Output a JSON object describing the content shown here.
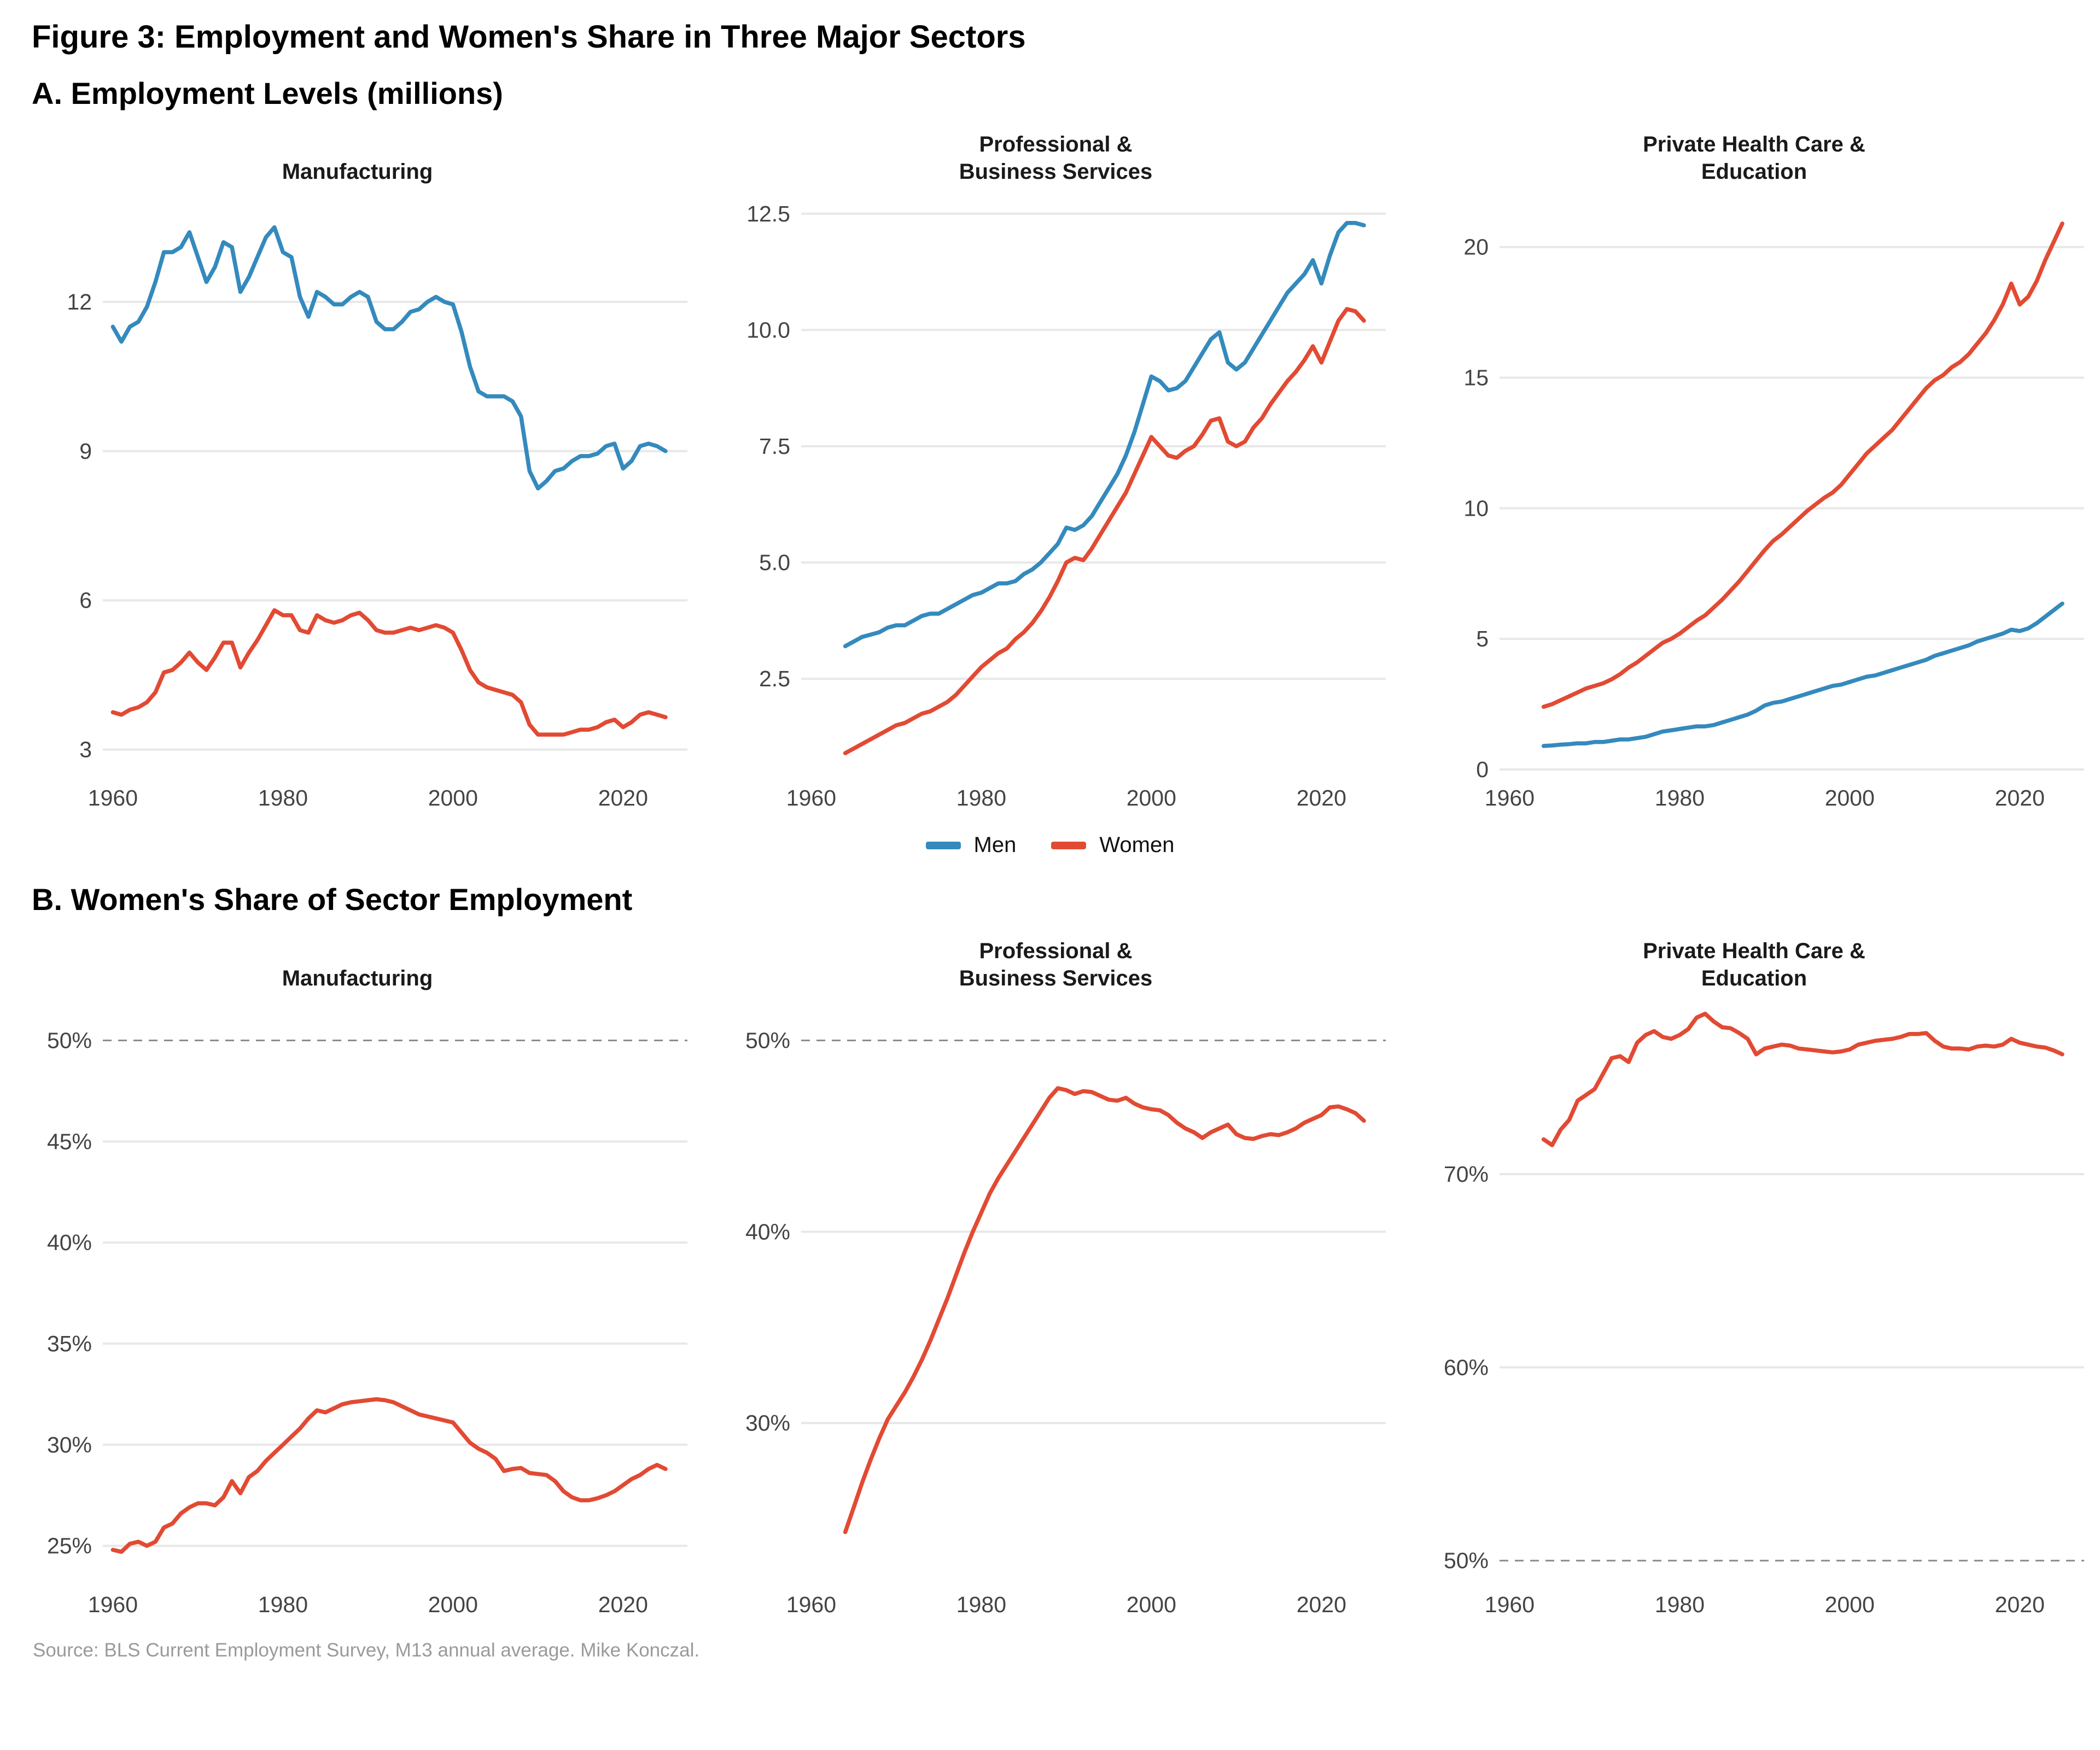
{
  "page": {
    "title": "Figure 3: Employment and Women's Share in Three Major Sectors",
    "panel_a_heading": "A. Employment Levels (millions)",
    "panel_b_heading": "B. Women's Share of Sector Employment",
    "source": "Source: BLS Current Employment Survey, M13 annual average. Mike Konczal."
  },
  "legend": {
    "position": "bottom-center",
    "items": [
      {
        "label": "Men",
        "color": "#348ABD"
      },
      {
        "label": "Women",
        "color": "#E24A33"
      }
    ]
  },
  "colors": {
    "men": "#348ABD",
    "women": "#E24A33",
    "gridline": "#E8E8E8",
    "dashed_line": "#8C8C8C",
    "tick_label": "#444444",
    "title_text": "#000000",
    "source_text": "#9A9A9A"
  },
  "chart_data": [
    {
      "id": "a-manufacturing",
      "panel": "A",
      "type": "line",
      "title_lines": [
        "Manufacturing"
      ],
      "xlabel": "",
      "ylabel": "",
      "xlim": [
        1959.2,
        2026.8
      ],
      "ylim": [
        2.6,
        14.1
      ],
      "xticks": [
        1960,
        1980,
        2000,
        2020
      ],
      "yticks": [
        {
          "value": 12,
          "label": "12"
        },
        {
          "value": 9,
          "label": "9"
        },
        {
          "value": 6,
          "label": "6"
        },
        {
          "value": 3,
          "label": "3"
        }
      ],
      "series": [
        {
          "name": "Men",
          "color_key": "men",
          "start_year": 1960,
          "values": [
            11.5,
            11.2,
            11.5,
            11.6,
            11.9,
            12.4,
            13.0,
            13.0,
            13.1,
            13.4,
            12.9,
            12.4,
            12.7,
            13.2,
            13.1,
            12.2,
            12.5,
            12.9,
            13.3,
            13.5,
            13.0,
            12.9,
            12.1,
            11.7,
            12.2,
            12.1,
            11.95,
            11.95,
            12.1,
            12.2,
            12.1,
            11.6,
            11.45,
            11.45,
            11.6,
            11.8,
            11.85,
            12.0,
            12.1,
            12.0,
            11.95,
            11.4,
            10.7,
            10.2,
            10.1,
            10.1,
            10.1,
            10.0,
            9.7,
            8.6,
            8.25,
            8.4,
            8.6,
            8.65,
            8.8,
            8.9,
            8.9,
            8.95,
            9.1,
            9.15,
            8.65,
            8.8,
            9.1,
            9.15,
            9.1,
            9.0
          ]
        },
        {
          "name": "Women",
          "color_key": "women",
          "start_year": 1960,
          "values": [
            3.75,
            3.7,
            3.8,
            3.85,
            3.95,
            4.15,
            4.55,
            4.6,
            4.75,
            4.95,
            4.75,
            4.6,
            4.85,
            5.15,
            5.15,
            4.65,
            4.95,
            5.2,
            5.5,
            5.8,
            5.7,
            5.7,
            5.4,
            5.35,
            5.7,
            5.6,
            5.55,
            5.6,
            5.7,
            5.75,
            5.6,
            5.4,
            5.35,
            5.35,
            5.4,
            5.45,
            5.4,
            5.45,
            5.5,
            5.45,
            5.35,
            5.0,
            4.6,
            4.35,
            4.25,
            4.2,
            4.15,
            4.1,
            3.95,
            3.5,
            3.3,
            3.3,
            3.3,
            3.3,
            3.35,
            3.4,
            3.4,
            3.45,
            3.55,
            3.6,
            3.45,
            3.55,
            3.7,
            3.75,
            3.7,
            3.65
          ]
        }
      ]
    },
    {
      "id": "a-professional-business",
      "panel": "A",
      "type": "line",
      "title_lines": [
        "Professional &",
        "Business Services"
      ],
      "xlabel": "",
      "ylabel": "",
      "xlim": [
        1959.2,
        2026.8
      ],
      "ylim": [
        0.55,
        12.85
      ],
      "xticks": [
        1960,
        1980,
        2000,
        2020
      ],
      "yticks": [
        {
          "value": 12.5,
          "label": "12.5"
        },
        {
          "value": 10.0,
          "label": "10.0"
        },
        {
          "value": 7.5,
          "label": "7.5"
        },
        {
          "value": 5.0,
          "label": "5.0"
        },
        {
          "value": 2.5,
          "label": "2.5"
        }
      ],
      "series": [
        {
          "name": "Men",
          "color_key": "men",
          "start_year": 1964,
          "values": [
            3.2,
            3.3,
            3.4,
            3.45,
            3.5,
            3.6,
            3.65,
            3.65,
            3.75,
            3.85,
            3.9,
            3.9,
            4.0,
            4.1,
            4.2,
            4.3,
            4.35,
            4.45,
            4.55,
            4.55,
            4.6,
            4.75,
            4.85,
            5.0,
            5.2,
            5.4,
            5.75,
            5.7,
            5.8,
            6.0,
            6.3,
            6.6,
            6.9,
            7.3,
            7.8,
            8.4,
            9.0,
            8.9,
            8.7,
            8.75,
            8.9,
            9.2,
            9.5,
            9.8,
            9.95,
            9.3,
            9.15,
            9.3,
            9.6,
            9.9,
            10.2,
            10.5,
            10.8,
            11.0,
            11.2,
            11.5,
            11.0,
            11.6,
            12.1,
            12.3,
            12.3,
            12.25
          ]
        },
        {
          "name": "Women",
          "color_key": "women",
          "start_year": 1964,
          "values": [
            0.9,
            1.0,
            1.1,
            1.2,
            1.3,
            1.4,
            1.5,
            1.55,
            1.65,
            1.75,
            1.8,
            1.9,
            2.0,
            2.15,
            2.35,
            2.55,
            2.75,
            2.9,
            3.05,
            3.15,
            3.35,
            3.5,
            3.7,
            3.95,
            4.25,
            4.6,
            5.0,
            5.1,
            5.05,
            5.3,
            5.6,
            5.9,
            6.2,
            6.5,
            6.9,
            7.3,
            7.7,
            7.5,
            7.3,
            7.25,
            7.4,
            7.5,
            7.75,
            8.05,
            8.1,
            7.6,
            7.5,
            7.6,
            7.9,
            8.1,
            8.4,
            8.65,
            8.9,
            9.1,
            9.35,
            9.65,
            9.3,
            9.75,
            10.2,
            10.45,
            10.4,
            10.2
          ]
        }
      ]
    },
    {
      "id": "a-health-education",
      "panel": "A",
      "type": "line",
      "title_lines": [
        "Private Health Care &",
        "Education"
      ],
      "xlabel": "",
      "ylabel": "",
      "xlim": [
        1959.2,
        2026.8
      ],
      "ylim": [
        0,
        21.9
      ],
      "xticks": [
        1960,
        1980,
        2000,
        2020
      ],
      "yticks": [
        {
          "value": 20,
          "label": "20"
        },
        {
          "value": 15,
          "label": "15"
        },
        {
          "value": 10,
          "label": "10"
        },
        {
          "value": 5,
          "label": "5"
        },
        {
          "value": 0,
          "label": "0"
        }
      ],
      "series": [
        {
          "name": "Women",
          "color_key": "women",
          "start_year": 1964,
          "values": [
            2.4,
            2.5,
            2.65,
            2.8,
            2.95,
            3.1,
            3.2,
            3.3,
            3.45,
            3.65,
            3.9,
            4.1,
            4.35,
            4.6,
            4.85,
            5.0,
            5.2,
            5.45,
            5.7,
            5.9,
            6.2,
            6.5,
            6.85,
            7.2,
            7.6,
            8.0,
            8.4,
            8.75,
            9.0,
            9.3,
            9.6,
            9.9,
            10.15,
            10.4,
            10.6,
            10.9,
            11.3,
            11.7,
            12.1,
            12.4,
            12.7,
            13.0,
            13.4,
            13.8,
            14.2,
            14.6,
            14.9,
            15.1,
            15.4,
            15.6,
            15.9,
            16.3,
            16.7,
            17.2,
            17.8,
            18.6,
            17.8,
            18.1,
            18.7,
            19.5,
            20.2,
            20.9
          ]
        },
        {
          "name": "Men",
          "color_key": "men",
          "start_year": 1964,
          "values": [
            0.9,
            0.92,
            0.95,
            0.97,
            1.0,
            1.0,
            1.05,
            1.05,
            1.1,
            1.15,
            1.15,
            1.2,
            1.25,
            1.35,
            1.45,
            1.5,
            1.55,
            1.6,
            1.65,
            1.65,
            1.7,
            1.8,
            1.9,
            2.0,
            2.1,
            2.25,
            2.45,
            2.55,
            2.6,
            2.7,
            2.8,
            2.9,
            3.0,
            3.1,
            3.2,
            3.25,
            3.35,
            3.45,
            3.55,
            3.6,
            3.7,
            3.8,
            3.9,
            4.0,
            4.1,
            4.2,
            4.35,
            4.45,
            4.55,
            4.65,
            4.75,
            4.9,
            5.0,
            5.1,
            5.2,
            5.35,
            5.3,
            5.4,
            5.6,
            5.85,
            6.1,
            6.35
          ]
        }
      ]
    },
    {
      "id": "b-manufacturing",
      "panel": "B",
      "type": "line",
      "title_lines": [
        "Manufacturing"
      ],
      "xlabel": "",
      "ylabel": "",
      "xlim": [
        1959.2,
        2026.8
      ],
      "ylim": [
        23.5,
        51.8
      ],
      "xticks": [
        1960,
        1980,
        2000,
        2020
      ],
      "yticks": [
        {
          "value": 50,
          "label": "50%",
          "dashed": true
        },
        {
          "value": 45,
          "label": "45%"
        },
        {
          "value": 40,
          "label": "40%"
        },
        {
          "value": 35,
          "label": "35%"
        },
        {
          "value": 30,
          "label": "30%"
        },
        {
          "value": 25,
          "label": "25%"
        }
      ],
      "series": [
        {
          "name": "Women",
          "color_key": "women",
          "start_year": 1960,
          "values": [
            24.8,
            24.7,
            25.1,
            25.2,
            25.0,
            25.2,
            25.9,
            26.1,
            26.6,
            26.9,
            27.1,
            27.1,
            27.0,
            27.4,
            28.2,
            27.6,
            28.4,
            28.7,
            29.2,
            29.6,
            30.0,
            30.4,
            30.8,
            31.3,
            31.7,
            31.6,
            31.8,
            32.0,
            32.1,
            32.15,
            32.2,
            32.25,
            32.2,
            32.1,
            31.9,
            31.7,
            31.5,
            31.4,
            31.3,
            31.2,
            31.1,
            30.6,
            30.1,
            29.8,
            29.6,
            29.3,
            28.7,
            28.8,
            28.85,
            28.6,
            28.55,
            28.5,
            28.2,
            27.7,
            27.4,
            27.25,
            27.25,
            27.35,
            27.5,
            27.7,
            28.0,
            28.3,
            28.5,
            28.8,
            29.0,
            28.8
          ]
        }
      ]
    },
    {
      "id": "b-professional-business",
      "panel": "B",
      "type": "line",
      "title_lines": [
        "Professional &",
        "Business Services"
      ],
      "xlabel": "",
      "ylabel": "",
      "xlim": [
        1959.2,
        2026.8
      ],
      "ylim": [
        22.0,
        51.9
      ],
      "xticks": [
        1960,
        1980,
        2000,
        2020
      ],
      "yticks": [
        {
          "value": 50,
          "label": "50%",
          "dashed": true
        },
        {
          "value": 40,
          "label": "40%"
        },
        {
          "value": 30,
          "label": "30%"
        }
      ],
      "series": [
        {
          "name": "Women",
          "color_key": "women",
          "start_year": 1964,
          "values": [
            24.3,
            25.6,
            26.9,
            28.1,
            29.2,
            30.2,
            30.9,
            31.6,
            32.4,
            33.3,
            34.3,
            35.4,
            36.5,
            37.7,
            38.9,
            40.0,
            41.0,
            42.0,
            42.8,
            43.5,
            44.2,
            44.9,
            45.6,
            46.3,
            47.0,
            47.5,
            47.4,
            47.2,
            47.35,
            47.3,
            47.1,
            46.9,
            46.85,
            47.0,
            46.7,
            46.5,
            46.4,
            46.35,
            46.1,
            45.7,
            45.4,
            45.2,
            44.9,
            45.2,
            45.4,
            45.6,
            45.1,
            44.9,
            44.85,
            45.0,
            45.1,
            45.05,
            45.2,
            45.4,
            45.7,
            45.9,
            46.1,
            46.5,
            46.55,
            46.4,
            46.2,
            45.8
          ]
        }
      ]
    },
    {
      "id": "b-health-education",
      "panel": "B",
      "type": "line",
      "title_lines": [
        "Private Health Care &",
        "Education"
      ],
      "xlabel": "",
      "ylabel": "",
      "xlim": [
        1959.2,
        2026.8
      ],
      "ylim": [
        49.2,
        78.8
      ],
      "xticks": [
        1960,
        1980,
        2000,
        2020
      ],
      "yticks": [
        {
          "value": 70,
          "label": "70%"
        },
        {
          "value": 60,
          "label": "60%"
        },
        {
          "value": 50,
          "label": "50%",
          "dashed": true
        }
      ],
      "series": [
        {
          "name": "Women",
          "color_key": "women",
          "start_year": 1964,
          "values": [
            71.8,
            71.5,
            72.3,
            72.8,
            73.8,
            74.1,
            74.4,
            75.2,
            76.0,
            76.1,
            75.8,
            76.8,
            77.2,
            77.4,
            77.1,
            77.0,
            77.2,
            77.5,
            78.1,
            78.3,
            77.9,
            77.6,
            77.55,
            77.3,
            77.0,
            76.2,
            76.5,
            76.6,
            76.7,
            76.65,
            76.5,
            76.45,
            76.4,
            76.35,
            76.3,
            76.35,
            76.45,
            76.7,
            76.8,
            76.9,
            76.95,
            77.0,
            77.1,
            77.25,
            77.25,
            77.3,
            76.9,
            76.6,
            76.5,
            76.5,
            76.45,
            76.6,
            76.65,
            76.6,
            76.7,
            77.0,
            76.8,
            76.7,
            76.6,
            76.55,
            76.4,
            76.2
          ]
        }
      ]
    }
  ]
}
